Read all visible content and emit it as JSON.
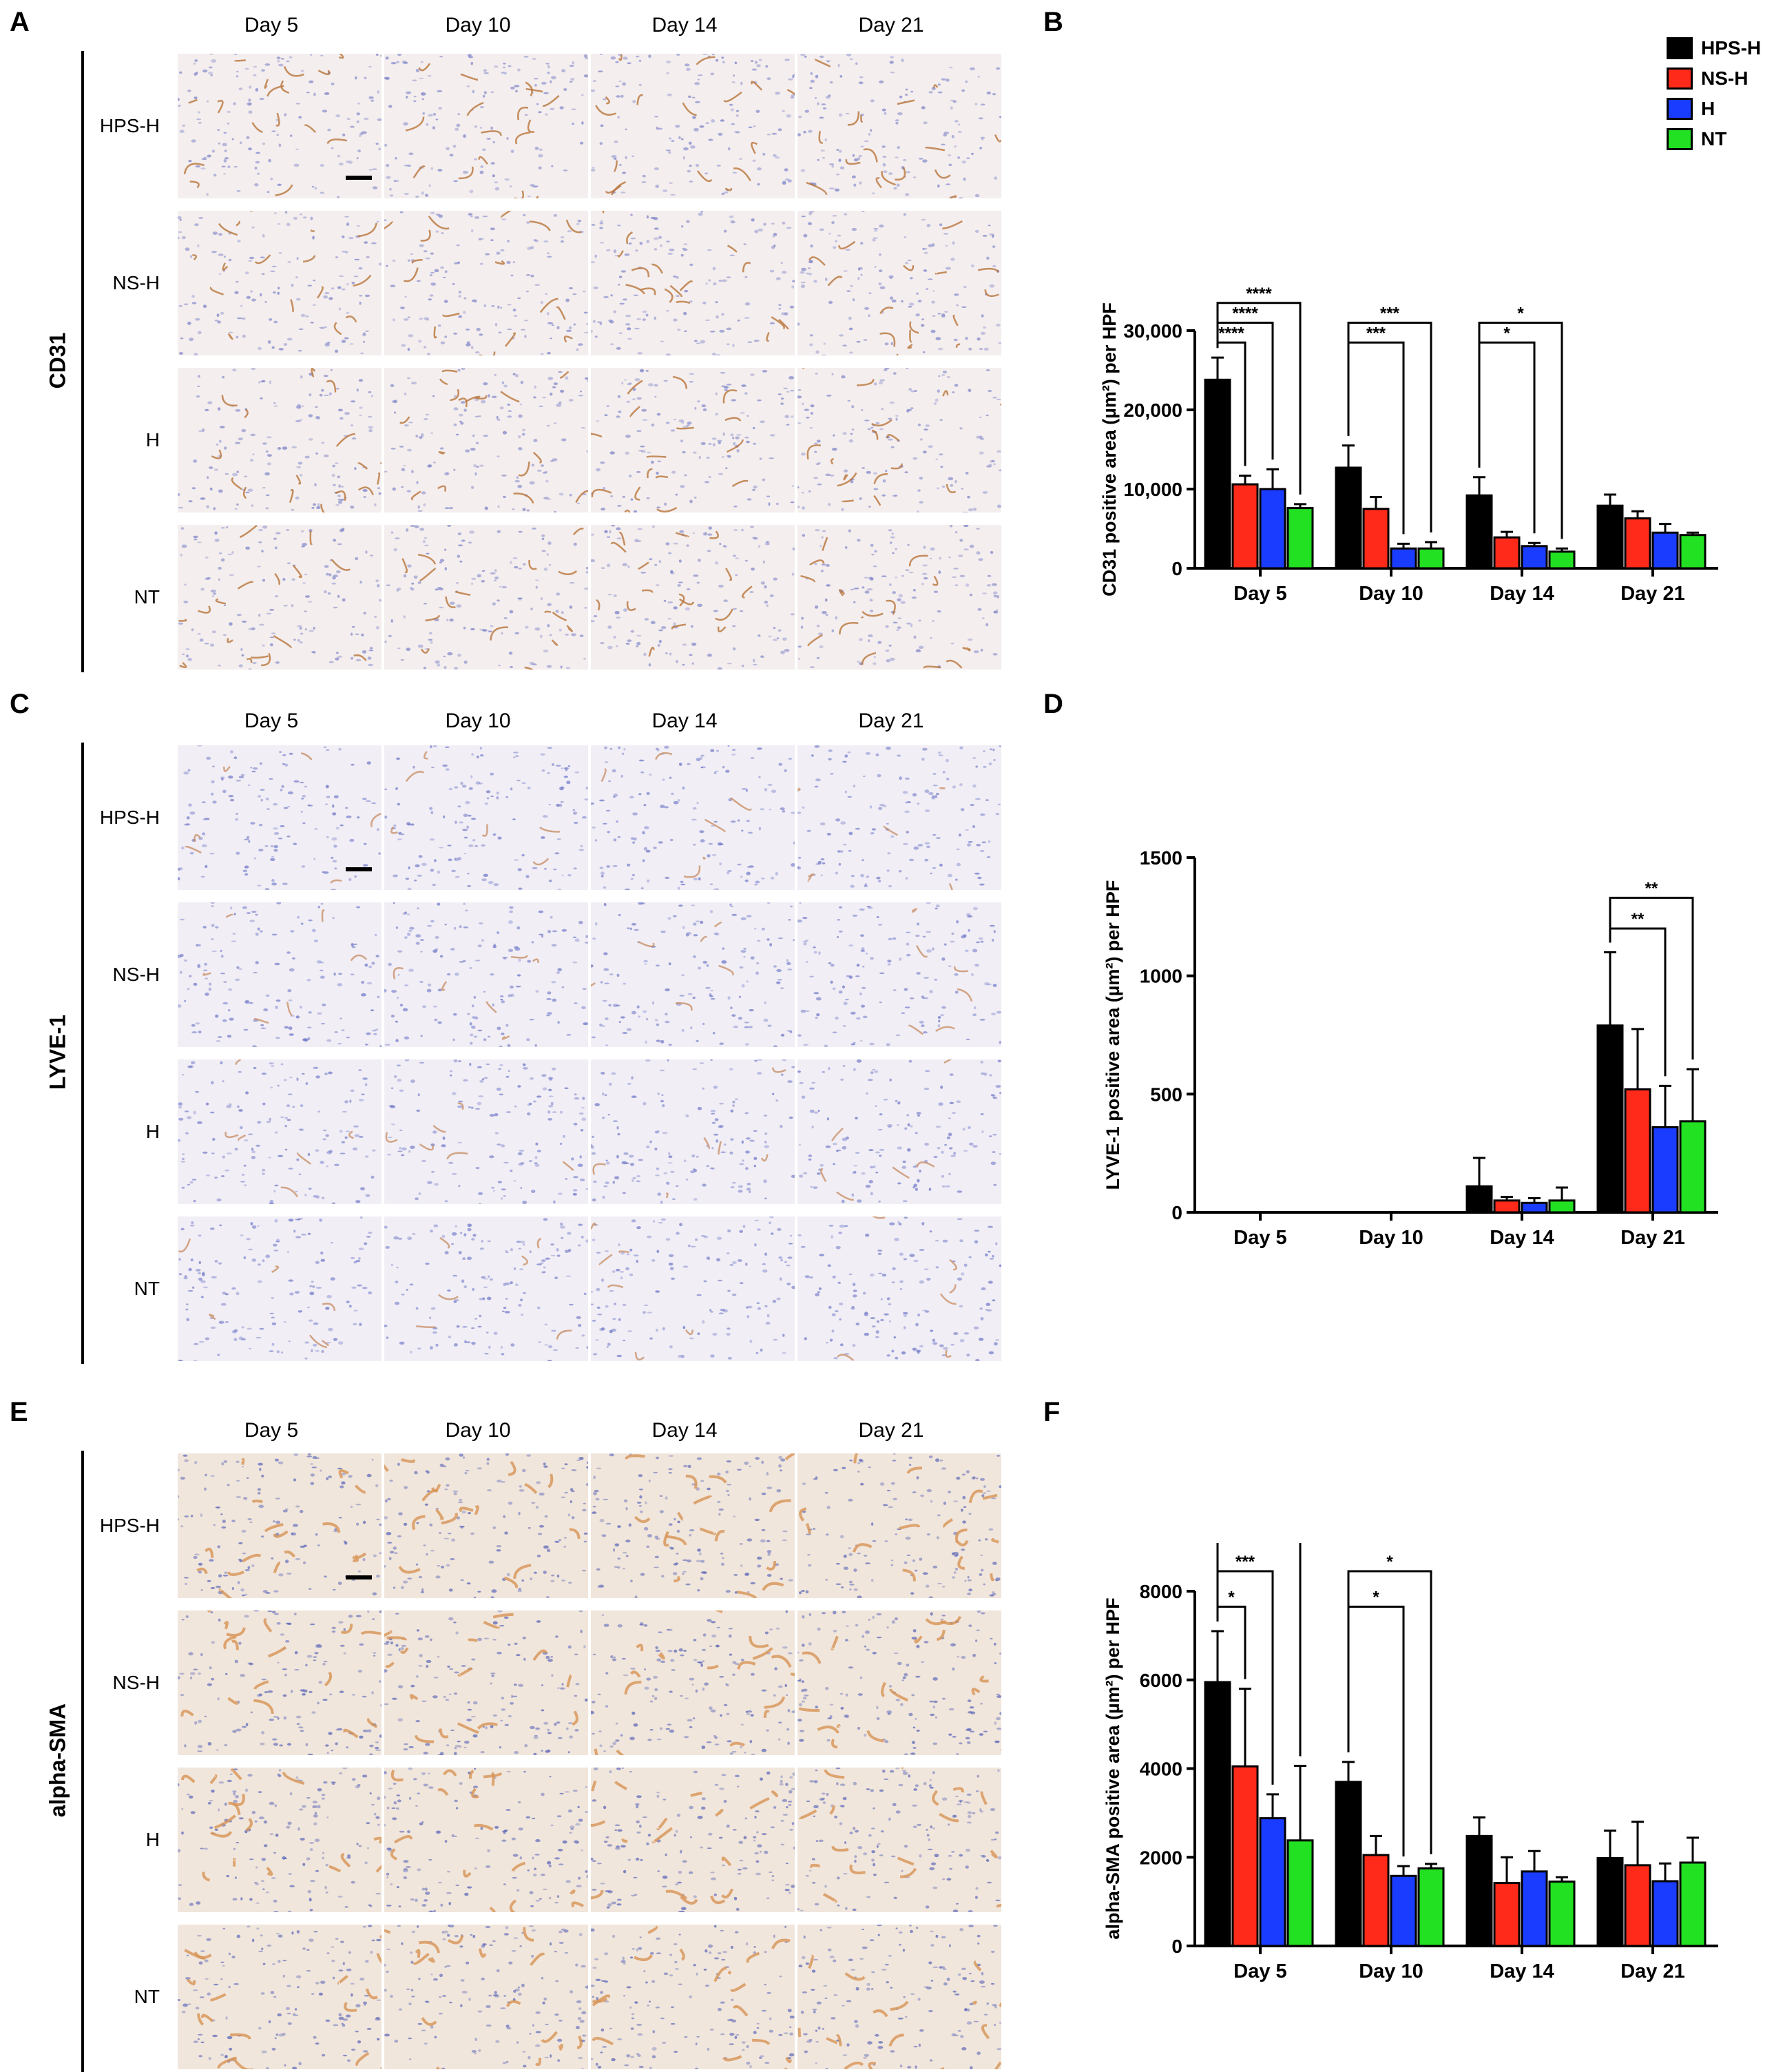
{
  "panels": {
    "A": "A",
    "B": "B",
    "C": "C",
    "D": "D",
    "E": "E",
    "F": "F"
  },
  "micrographs": [
    {
      "stain": "CD31",
      "columns": [
        "Day 5",
        "Day 10",
        "Day 14",
        "Day 21"
      ],
      "rows": [
        "HPS-H",
        "NS-H",
        "H",
        "NT"
      ],
      "bg": "#f4eeee",
      "cell": "#7c82c8",
      "stain_color": "#b8743a"
    },
    {
      "stain": "LYVE-1",
      "columns": [
        "Day 5",
        "Day 10",
        "Day 14",
        "Day 21"
      ],
      "rows": [
        "HPS-H",
        "NS-H",
        "H",
        "NT"
      ],
      "bg": "#f1eef5",
      "cell": "#6f78c8",
      "stain_color": "#c9916a"
    },
    {
      "stain": "alpha-SMA",
      "columns": [
        "Day 5",
        "Day 10",
        "Day 14",
        "Day 21"
      ],
      "rows": [
        "HPS-H",
        "NS-H",
        "H",
        "NT"
      ],
      "bg": "#f1e6dc",
      "cell": "#5a66b8",
      "stain_color": "#d79455"
    }
  ],
  "legend": {
    "items": [
      {
        "label": "HPS-H",
        "color": "#000000"
      },
      {
        "label": "NS-H",
        "color": "#ff2a1a"
      },
      {
        "label": "H",
        "color": "#1a3cff"
      },
      {
        "label": "NT",
        "color": "#22e022"
      }
    ]
  },
  "chart_data": [
    {
      "type": "bar",
      "categories": [
        "Day 5",
        "Day 10",
        "Day 14",
        "Day 21"
      ],
      "ylabel": "CD31 positive area (µm²) per HPF",
      "ylim": [
        0,
        30000
      ],
      "yticks": [
        0,
        10000,
        20000,
        30000
      ],
      "ytick_labels": [
        "0",
        "10,000",
        "20,000",
        "30,000"
      ],
      "series": [
        {
          "name": "HPS-H",
          "values": [
            23800,
            12700,
            9200,
            7900
          ],
          "errors": [
            2800,
            2800,
            2300,
            1400
          ]
        },
        {
          "name": "NS-H",
          "values": [
            10600,
            7500,
            3900,
            6300
          ],
          "errors": [
            1100,
            1500,
            700,
            900
          ]
        },
        {
          "name": "H",
          "values": [
            10000,
            2500,
            2800,
            4500
          ],
          "errors": [
            2500,
            600,
            400,
            1100
          ]
        },
        {
          "name": "NT",
          "values": [
            7600,
            2500,
            2100,
            4200
          ],
          "errors": [
            500,
            800,
            400,
            300
          ]
        }
      ],
      "significance": [
        {
          "category": 0,
          "to_series": 1,
          "label": "****",
          "y": 28500
        },
        {
          "category": 0,
          "to_series": 2,
          "label": "****",
          "y": 31000
        },
        {
          "category": 0,
          "to_series": 3,
          "label": "****",
          "y": 33500
        },
        {
          "category": 1,
          "to_series": 2,
          "label": "***",
          "y": 28500
        },
        {
          "category": 1,
          "to_series": 3,
          "label": "***",
          "y": 31000
        },
        {
          "category": 2,
          "to_series": 2,
          "label": "*",
          "y": 28500
        },
        {
          "category": 2,
          "to_series": 3,
          "label": "*",
          "y": 31000
        }
      ]
    },
    {
      "type": "bar",
      "categories": [
        "Day 5",
        "Day 10",
        "Day 14",
        "Day 21"
      ],
      "ylabel": "LYVE-1 positive area (µm²) per HPF",
      "ylim": [
        0,
        1500
      ],
      "yticks": [
        0,
        500,
        1000,
        1500
      ],
      "ytick_labels": [
        "0",
        "500",
        "1000",
        "1500"
      ],
      "series": [
        {
          "name": "HPS-H",
          "values": [
            0,
            0,
            110,
            790
          ],
          "errors": [
            0,
            0,
            120,
            310
          ]
        },
        {
          "name": "NS-H",
          "values": [
            0,
            0,
            50,
            520
          ],
          "errors": [
            0,
            0,
            15,
            255
          ]
        },
        {
          "name": "H",
          "values": [
            0,
            0,
            40,
            360
          ],
          "errors": [
            0,
            0,
            20,
            175
          ]
        },
        {
          "name": "NT",
          "values": [
            0,
            0,
            50,
            385
          ],
          "errors": [
            0,
            0,
            55,
            220
          ]
        }
      ],
      "significance": [
        {
          "category": 3,
          "to_series": 2,
          "label": "**",
          "y": 1200
        },
        {
          "category": 3,
          "to_series": 3,
          "label": "**",
          "y": 1330
        }
      ]
    },
    {
      "type": "bar",
      "categories": [
        "Day 5",
        "Day 10",
        "Day 14",
        "Day 21"
      ],
      "ylabel": "alpha-SMA positive area (µm²) per HPF",
      "ylim": [
        0,
        8000
      ],
      "yticks": [
        0,
        2000,
        4000,
        6000,
        8000
      ],
      "ytick_labels": [
        "0",
        "2000",
        "4000",
        "6000",
        "8000"
      ],
      "series": [
        {
          "name": "HPS-H",
          "values": [
            5950,
            3700,
            2480,
            1980
          ],
          "errors": [
            1150,
            450,
            420,
            620
          ]
        },
        {
          "name": "NS-H",
          "values": [
            4050,
            2050,
            1420,
            1820
          ],
          "errors": [
            1750,
            430,
            580,
            980
          ]
        },
        {
          "name": "H",
          "values": [
            2880,
            1580,
            1680,
            1460
          ],
          "errors": [
            540,
            220,
            460,
            400
          ]
        },
        {
          "name": "NT",
          "values": [
            2380,
            1750,
            1450,
            1880
          ],
          "errors": [
            1680,
            100,
            100,
            560
          ]
        }
      ],
      "significance": [
        {
          "category": 0,
          "to_series": 1,
          "label": "*",
          "y": 7650
        },
        {
          "category": 0,
          "to_series": 2,
          "label": "***",
          "y": 8450
        },
        {
          "category": 0,
          "to_series": 3,
          "label": "****",
          "y": 9250
        },
        {
          "category": 1,
          "to_series": 2,
          "label": "*",
          "y": 7650
        },
        {
          "category": 1,
          "to_series": 3,
          "label": "*",
          "y": 8450
        }
      ]
    }
  ]
}
